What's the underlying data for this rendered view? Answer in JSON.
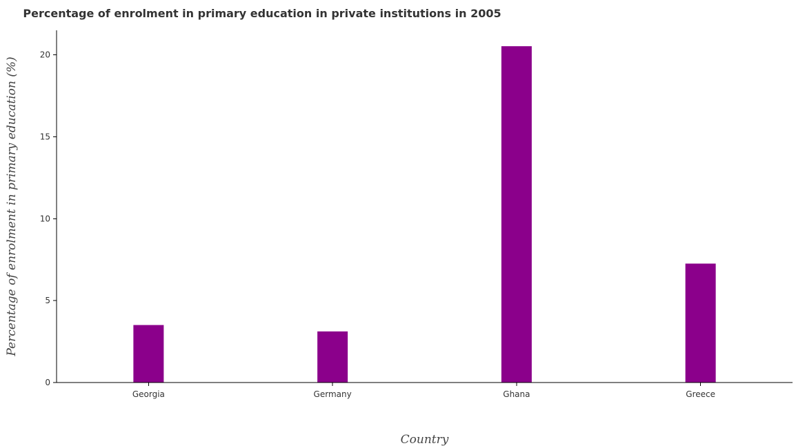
{
  "chart_data": {
    "type": "bar",
    "title": "Percentage of enrolment in primary education in private institutions in 2005",
    "xlabel": "Country",
    "ylabel": "Percentage of enrolment in primary education (%)",
    "categories": [
      "Georgia",
      "Germany",
      "Ghana",
      "Greece"
    ],
    "values": [
      3.51,
      3.12,
      20.53,
      7.26
    ],
    "ylim": [
      0,
      21.5
    ],
    "yticks": [
      0,
      5,
      10,
      15,
      20
    ],
    "ytick_labels": [
      "0",
      "5",
      "10",
      "15",
      "20"
    ],
    "grid": false,
    "legend": "none",
    "bar_color": "#8b008b"
  }
}
